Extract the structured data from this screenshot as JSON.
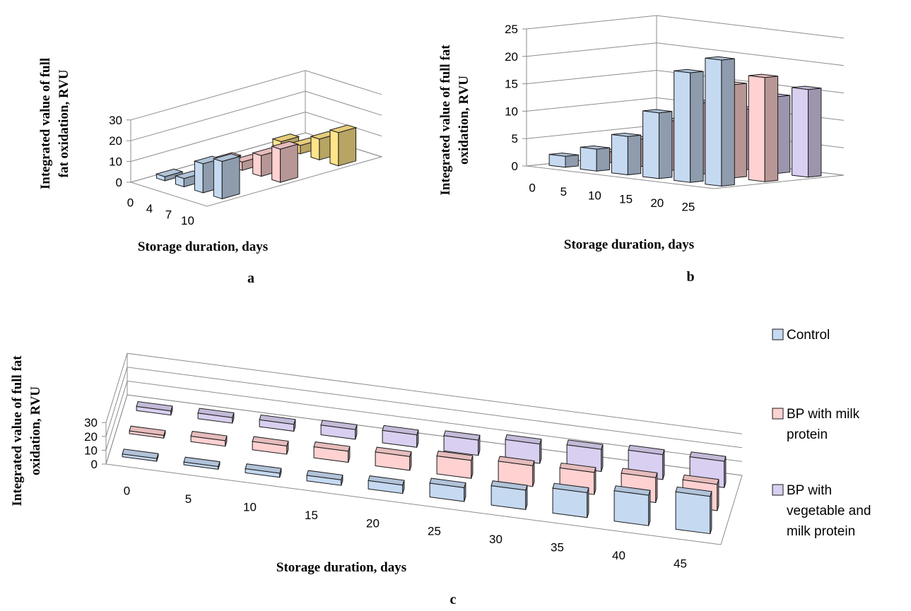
{
  "colors": {
    "Control": "#c5d9f1",
    "BP with milk protein": "#ffd1d1",
    "BP with vegetable and milk protein": "#d9cff0",
    "fourth_series": "#ffe48a",
    "edge": "#1a1a1a"
  },
  "legend": {
    "items": [
      {
        "key": "Control",
        "lines": [
          "Control"
        ]
      },
      {
        "key": "BP with milk protein",
        "lines": [
          "BP with milk",
          "protein"
        ]
      },
      {
        "key": "BP with vegetable and milk protein",
        "lines": [
          "BP with",
          "vegetable and",
          "milk protein"
        ]
      }
    ]
  },
  "chart_data": [
    {
      "panel": "a",
      "type": "bar",
      "style": "3d-clustered-depth",
      "xlabel": "Storage duration, days",
      "ylabel": "Integrated value of full fat oxidation, RVU",
      "ylabel_lines": [
        "Integrated value of full",
        "fat oxidation, RVU"
      ],
      "categories": [
        "0",
        "4",
        "7",
        "10"
      ],
      "yticks": [
        0,
        10,
        20,
        30
      ],
      "ylim": [
        0,
        30
      ],
      "series": [
        {
          "key": "Control",
          "values": [
            2,
            4,
            14,
            18
          ]
        },
        {
          "key": "BP with milk protein",
          "values": [
            2,
            4,
            10,
            16
          ]
        },
        {
          "key": "fourth_series",
          "values": [
            3,
            4,
            10,
            16
          ]
        }
      ]
    },
    {
      "panel": "b",
      "type": "bar",
      "style": "3d-clustered-depth",
      "xlabel": "Storage duration, days",
      "ylabel": "Integrated value of full fat oxidation, RVU",
      "ylabel_lines": [
        "Integrated value of full fat",
        "oxidation, RVU"
      ],
      "categories": [
        "0",
        "5",
        "10",
        "15",
        "20",
        "25"
      ],
      "yticks": [
        0,
        5,
        10,
        15,
        20,
        25
      ],
      "ylim": [
        0,
        25
      ],
      "series": [
        {
          "key": "Control",
          "values": [
            2,
            4,
            7,
            12,
            20,
            23
          ]
        },
        {
          "key": "BP with milk protein",
          "values": [
            2,
            5,
            9,
            13,
            17,
            19
          ]
        },
        {
          "key": "BP with vegetable and milk protein",
          "values": [
            3,
            5,
            7,
            11,
            14,
            16
          ]
        }
      ]
    },
    {
      "panel": "c",
      "type": "bar",
      "style": "3d-clustered-depth",
      "xlabel": "Storage duration, days",
      "ylabel": "Integrated value of full fat oxidation, RVU",
      "ylabel_lines": [
        "Integrated value of full fat",
        "oxidation, RVU"
      ],
      "categories": [
        "0",
        "5",
        "10",
        "15",
        "20",
        "25",
        "30",
        "35",
        "40",
        "45"
      ],
      "yticks": [
        0,
        10,
        20,
        30
      ],
      "ylim": [
        0,
        30
      ],
      "series": [
        {
          "key": "Control",
          "values": [
            2,
            2,
            3,
            4,
            6,
            10,
            14,
            18,
            22,
            27
          ]
        },
        {
          "key": "BP with milk protein",
          "values": [
            2,
            4,
            6,
            8,
            10,
            13,
            15,
            16,
            18,
            19
          ]
        },
        {
          "key": "BP with vegetable and milk protein",
          "values": [
            3,
            4,
            5,
            7,
            9,
            11,
            14,
            16,
            18,
            19
          ]
        }
      ]
    }
  ]
}
